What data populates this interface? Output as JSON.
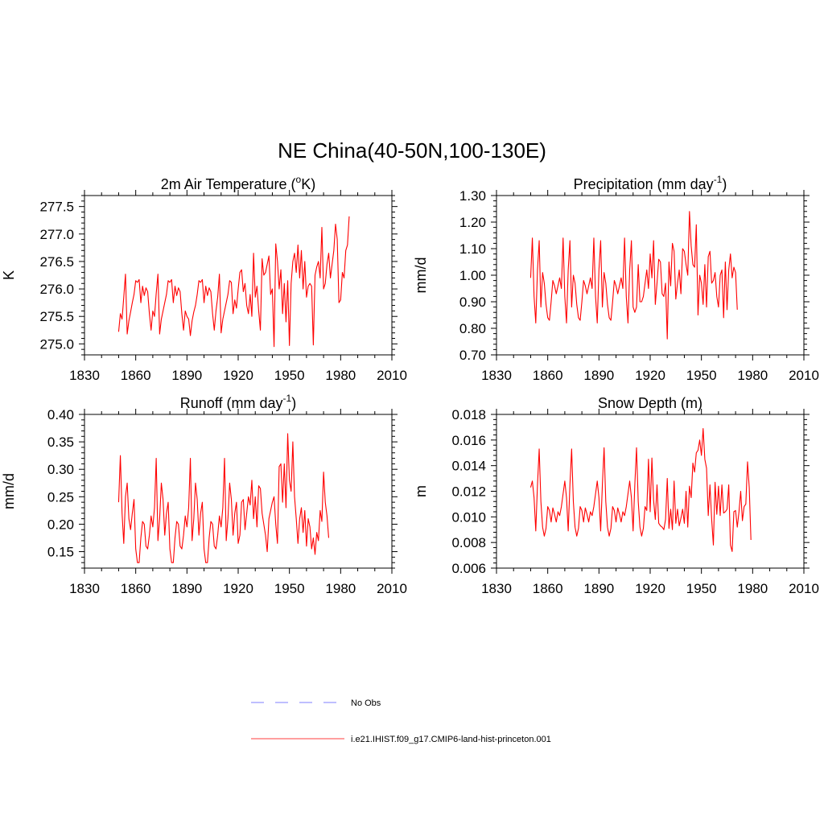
{
  "figure_title": "NE China(40-50N,100-130E)",
  "chart_data": [
    {
      "type": "line",
      "title_main": "2m Air Temperature (",
      "title_sup": "o",
      "title_tail": "K)",
      "ylabel": "K",
      "xlim": [
        1830,
        2010
      ],
      "ylim": [
        274.8,
        277.7
      ],
      "x_ticks": [
        "1830",
        "1860",
        "1890",
        "1920",
        "1950",
        "1980",
        "2010"
      ],
      "y_ticks": [
        "275.0",
        "275.5",
        "276.0",
        "276.5",
        "277.0",
        "277.5"
      ],
      "series": [
        {
          "color": "#ff0000",
          "x_start": 1850,
          "x_step": 1,
          "values": [
            275.22,
            275.55,
            275.45,
            275.85,
            276.27,
            275.18,
            275.42,
            275.58,
            275.75,
            275.9,
            276.15,
            276.12,
            276.17,
            275.75,
            276.05,
            275.88,
            276.02,
            275.95,
            275.55,
            275.25,
            275.6,
            275.5,
            275.92,
            276.27,
            275.18,
            275.45,
            275.6,
            275.75,
            275.9,
            276.15,
            276.12,
            276.17,
            275.75,
            276.05,
            275.88,
            276.02,
            275.95,
            275.55,
            275.25,
            275.6,
            275.5,
            275.45,
            275.15,
            275.42,
            275.58,
            275.7,
            275.9,
            276.15,
            276.12,
            276.17,
            275.75,
            276.05,
            275.88,
            276.02,
            275.95,
            275.55,
            275.25,
            275.6,
            275.85,
            276.27,
            275.2,
            275.45,
            275.6,
            275.75,
            275.9,
            276.15,
            276.12,
            275.55,
            275.8,
            275.65,
            276.0,
            276.3,
            276.35,
            275.95,
            276.1,
            275.7,
            275.55,
            275.9,
            275.5,
            276.65,
            275.85,
            276.05,
            275.6,
            275.25,
            276.55,
            276.25,
            276.3,
            276.45,
            276.6,
            275.9,
            276.0,
            274.95,
            276.82,
            276.5,
            276.0,
            276.35,
            275.55,
            276.1,
            275.4,
            276.15,
            274.97,
            276.1,
            276.5,
            276.65,
            276.3,
            276.8,
            276.2,
            276.7,
            276.0,
            276.5,
            275.85,
            276.05,
            276.1,
            276.05,
            274.98,
            276.25,
            276.4,
            276.5,
            276.2,
            277.12,
            276.0,
            276.1,
            276.45,
            276.65,
            276.2,
            276.45,
            276.7,
            277.18,
            276.9,
            275.75,
            275.8,
            276.3,
            276.2,
            276.7,
            276.8,
            277.32
          ]
        }
      ]
    },
    {
      "type": "line",
      "title_main": "Precipitation (mm day",
      "title_sup": "-1",
      "title_tail": ")",
      "ylabel": "mm/d",
      "xlim": [
        1830,
        2010
      ],
      "ylim": [
        0.7,
        1.3
      ],
      "x_ticks": [
        "1830",
        "1860",
        "1890",
        "1920",
        "1950",
        "1980",
        "2010"
      ],
      "y_ticks": [
        "0.70",
        "0.80",
        "0.90",
        "1.00",
        "1.10",
        "1.20",
        "1.30"
      ],
      "series": [
        {
          "color": "#ff0000",
          "x_start": 1850,
          "x_step": 1,
          "values": [
            0.99,
            1.14,
            0.92,
            0.82,
            1.02,
            1.13,
            0.88,
            1.01,
            0.97,
            0.89,
            0.84,
            0.83,
            0.9,
            0.98,
            0.96,
            0.93,
            0.96,
            0.99,
            0.95,
            1.14,
            0.92,
            0.82,
            1.02,
            1.13,
            0.88,
            1.0,
            0.97,
            0.89,
            0.84,
            0.83,
            0.9,
            0.98,
            0.96,
            0.93,
            0.96,
            0.99,
            0.95,
            1.14,
            0.92,
            0.82,
            1.02,
            1.13,
            0.88,
            1.01,
            0.97,
            0.89,
            0.84,
            0.83,
            0.9,
            0.98,
            0.96,
            0.93,
            0.96,
            0.99,
            0.95,
            1.14,
            0.92,
            0.82,
            1.02,
            1.13,
            0.88,
            0.86,
            0.88,
            1.04,
            0.9,
            0.9,
            0.92,
            0.97,
            1.02,
            0.95,
            1.08,
            0.99,
            1.13,
            0.89,
            0.97,
            1.06,
            1.05,
            0.93,
            0.92,
            0.97,
            0.76,
            1.05,
            0.96,
            1.12,
            1.09,
            0.91,
            0.97,
            1.02,
            0.93,
            1.1,
            1.09,
            1.04,
            1.0,
            1.24,
            1.11,
            1.04,
            1.03,
            1.19,
            0.85,
            1.0,
            0.97,
            0.89,
            1.04,
            0.88,
            1.07,
            1.09,
            0.97,
            0.98,
            1.01,
            0.92,
            0.88,
            1.0,
            1.02,
            0.84,
            1.05,
            0.87,
            1.02,
            1.08,
            0.99,
            1.03,
            1.01,
            0.87
          ]
        }
      ]
    },
    {
      "type": "line",
      "title_main": "Runoff (mm day",
      "title_sup": "-1",
      "title_tail": ")",
      "ylabel": "mm/d",
      "xlim": [
        1830,
        2010
      ],
      "ylim": [
        0.12,
        0.4
      ],
      "x_ticks": [
        "1830",
        "1860",
        "1890",
        "1920",
        "1950",
        "1980",
        "2010"
      ],
      "y_ticks": [
        "0.15",
        "0.20",
        "0.25",
        "0.30",
        "0.35",
        "0.40"
      ],
      "series": [
        {
          "color": "#ff0000",
          "x_start": 1850,
          "x_step": 1,
          "values": [
            0.24,
            0.325,
            0.22,
            0.165,
            0.25,
            0.275,
            0.21,
            0.19,
            0.22,
            0.245,
            0.155,
            0.13,
            0.13,
            0.175,
            0.205,
            0.2,
            0.16,
            0.155,
            0.18,
            0.215,
            0.195,
            0.23,
            0.32,
            0.17,
            0.21,
            0.275,
            0.245,
            0.18,
            0.22,
            0.24,
            0.155,
            0.13,
            0.13,
            0.175,
            0.205,
            0.2,
            0.16,
            0.155,
            0.18,
            0.215,
            0.195,
            0.23,
            0.32,
            0.17,
            0.21,
            0.275,
            0.245,
            0.18,
            0.22,
            0.24,
            0.155,
            0.13,
            0.13,
            0.175,
            0.205,
            0.2,
            0.16,
            0.155,
            0.18,
            0.215,
            0.195,
            0.23,
            0.32,
            0.17,
            0.21,
            0.275,
            0.245,
            0.18,
            0.22,
            0.24,
            0.165,
            0.18,
            0.24,
            0.245,
            0.19,
            0.22,
            0.25,
            0.235,
            0.28,
            0.21,
            0.25,
            0.195,
            0.27,
            0.265,
            0.22,
            0.2,
            0.18,
            0.15,
            0.21,
            0.225,
            0.24,
            0.25,
            0.2,
            0.165,
            0.305,
            0.31,
            0.24,
            0.31,
            0.23,
            0.365,
            0.28,
            0.26,
            0.35,
            0.25,
            0.21,
            0.165,
            0.21,
            0.23,
            0.185,
            0.225,
            0.16,
            0.21,
            0.195,
            0.155,
            0.175,
            0.145,
            0.185,
            0.17,
            0.225,
            0.205,
            0.295,
            0.24,
            0.215,
            0.175
          ]
        }
      ]
    },
    {
      "type": "line",
      "title_main": "Snow Depth (m)",
      "title_sup": "",
      "title_tail": "",
      "ylabel": "m",
      "xlim": [
        1830,
        2010
      ],
      "ylim": [
        0.006,
        0.018
      ],
      "x_ticks": [
        "1830",
        "1860",
        "1890",
        "1920",
        "1950",
        "1980",
        "2010"
      ],
      "y_ticks": [
        "0.006",
        "0.008",
        "0.010",
        "0.012",
        "0.014",
        "0.016",
        "0.018"
      ],
      "series": [
        {
          "color": "#ff0000",
          "x_start": 1850,
          "x_step": 1,
          "values": [
            0.0123,
            0.0128,
            0.0115,
            0.0089,
            0.0125,
            0.0153,
            0.0112,
            0.0092,
            0.0085,
            0.0091,
            0.0108,
            0.0105,
            0.0096,
            0.0107,
            0.0102,
            0.0096,
            0.0104,
            0.0101,
            0.0108,
            0.0118,
            0.0128,
            0.0115,
            0.0089,
            0.0125,
            0.0153,
            0.0112,
            0.0092,
            0.0085,
            0.0091,
            0.0108,
            0.0105,
            0.0096,
            0.0107,
            0.0102,
            0.0096,
            0.0104,
            0.0101,
            0.0108,
            0.0118,
            0.0128,
            0.0115,
            0.0089,
            0.0125,
            0.0154,
            0.0112,
            0.0092,
            0.0085,
            0.0091,
            0.0108,
            0.0105,
            0.0096,
            0.0107,
            0.0102,
            0.0096,
            0.0104,
            0.0101,
            0.0108,
            0.0118,
            0.0128,
            0.0115,
            0.0089,
            0.0125,
            0.0154,
            0.0112,
            0.0092,
            0.0085,
            0.0091,
            0.0108,
            0.0105,
            0.0145,
            0.0104,
            0.0146,
            0.0113,
            0.0098,
            0.0125,
            0.0095,
            0.0093,
            0.0092,
            0.009,
            0.0098,
            0.013,
            0.0091,
            0.0106,
            0.009,
            0.0128,
            0.0095,
            0.0106,
            0.0093,
            0.0099,
            0.0106,
            0.0095,
            0.012,
            0.0092,
            0.0124,
            0.0115,
            0.0142,
            0.0135,
            0.015,
            0.0152,
            0.016,
            0.0148,
            0.0169,
            0.0145,
            0.0138,
            0.0101,
            0.0125,
            0.0098,
            0.0078,
            0.0127,
            0.0102,
            0.0124,
            0.0101,
            0.0125,
            0.0103,
            0.0104,
            0.0106,
            0.0125,
            0.0078,
            0.0073,
            0.0104,
            0.0105,
            0.0092,
            0.0104,
            0.012,
            0.0097,
            0.0108,
            0.011,
            0.0143,
            0.0123,
            0.0082
          ]
        }
      ]
    }
  ],
  "legend": {
    "items": [
      {
        "label": "No Obs",
        "color": "#9999ff",
        "style": "dashed"
      },
      {
        "label": "i.e21.IHIST.f09_g17.CMIP6-land-hist-princeton.001",
        "color": "#ff6666",
        "style": "solid"
      }
    ]
  }
}
